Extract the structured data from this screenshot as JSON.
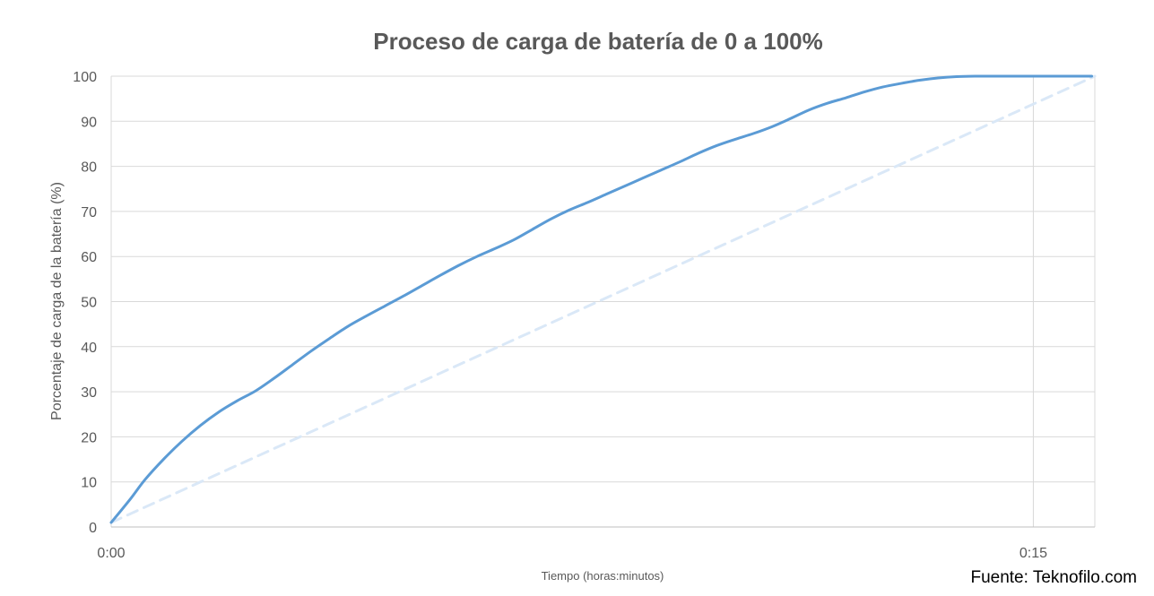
{
  "chart_data": {
    "type": "line",
    "title": "Proceso de carga de batería de 0 a 100%",
    "xlabel": "Tiempo (horas:minutos)",
    "ylabel": "Porcentaje de carga de la batería (%)",
    "source": "Fuente: Teknofilo.com",
    "x_unit": "minutes",
    "xlim": [
      0,
      16
    ],
    "ylim": [
      0,
      100
    ],
    "x_ticks": [
      {
        "value": 0,
        "label": "0:00"
      },
      {
        "value": 15,
        "label": "0:15"
      }
    ],
    "y_ticks": [
      0,
      10,
      20,
      30,
      40,
      50,
      60,
      70,
      80,
      90,
      100
    ],
    "grid": true,
    "legend": "none",
    "series": [
      {
        "style": "solid",
        "color": "#5b9bd5",
        "x": [
          0,
          0.3,
          0.55,
          0.85,
          1.15,
          1.45,
          1.75,
          2.05,
          2.35,
          2.65,
          2.95,
          3.25,
          3.55,
          3.85,
          4.15,
          4.45,
          4.75,
          5.05,
          5.35,
          5.65,
          5.95,
          6.25,
          6.55,
          6.85,
          7.15,
          7.45,
          7.75,
          8.05,
          8.35,
          8.65,
          8.95,
          9.25,
          9.55,
          9.85,
          10.15,
          10.45,
          10.75,
          11.05,
          11.35,
          11.65,
          11.95,
          12.25,
          12.55,
          12.85,
          13.15,
          13.45,
          13.75,
          14.05,
          14.35,
          14.65,
          14.95,
          15.25,
          15.55,
          15.95
        ],
        "y": [
          1,
          6,
          10.5,
          15,
          19,
          22.5,
          25.5,
          28,
          30.2,
          33,
          36,
          39,
          41.8,
          44.5,
          46.8,
          49,
          51.2,
          53.5,
          55.8,
          58,
          60,
          61.8,
          63.7,
          66,
          68.3,
          70.3,
          72,
          73.8,
          75.6,
          77.4,
          79.2,
          81,
          82.9,
          84.6,
          86,
          87.3,
          88.8,
          90.6,
          92.5,
          94,
          95.2,
          96.5,
          97.6,
          98.4,
          99.1,
          99.6,
          99.9,
          100,
          100,
          100,
          100,
          100,
          100,
          100
        ]
      },
      {
        "style": "dashed",
        "color": "#dae8f7",
        "x": [
          0,
          16
        ],
        "y": [
          1,
          100
        ]
      }
    ],
    "vertical_gridline_x": [
      15
    ]
  }
}
